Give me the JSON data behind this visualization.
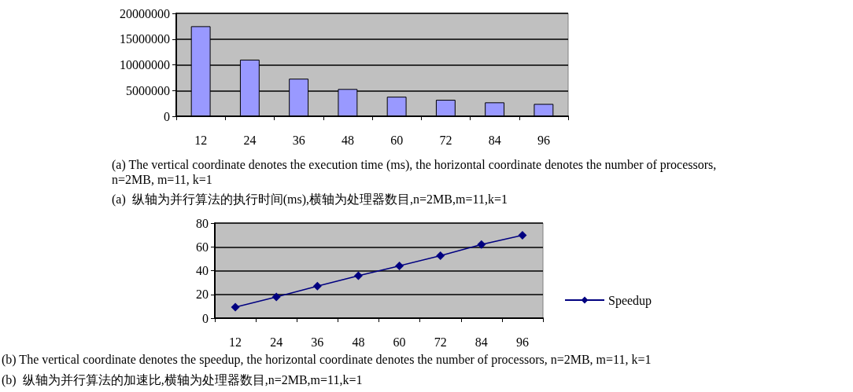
{
  "chart_data": [
    {
      "type": "bar",
      "categories": [
        "12",
        "24",
        "36",
        "48",
        "60",
        "72",
        "84",
        "96"
      ],
      "series": [
        {
          "color": "#9999ff",
          "values": [
            17500000,
            11000000,
            7300000,
            5300000,
            3800000,
            3200000,
            2700000,
            2400000
          ]
        }
      ],
      "ylim": [
        0,
        20000000
      ],
      "yticks": [
        0,
        5000000,
        10000000,
        15000000,
        20000000
      ],
      "grid": "y",
      "annotations": [
        "(a) The vertical coordinate denotes the execution time (ms), the horizontal coordinate denotes the number of processors, n=2MB, m=11, k=1",
        "(a)  纵轴为并行算法的执行时间(ms),横轴为处理器数目,n=2MB,m=11,k=1"
      ]
    },
    {
      "type": "line",
      "categories": [
        "12",
        "24",
        "36",
        "48",
        "60",
        "72",
        "84",
        "96"
      ],
      "series": [
        {
          "name": "Speedup",
          "color": "#000080",
          "values": [
            9.3,
            17.8,
            27,
            35.7,
            44,
            52.6,
            62,
            69.8
          ]
        }
      ],
      "ylim": [
        0,
        80
      ],
      "yticks": [
        0,
        20,
        40,
        60,
        80
      ],
      "grid": "y",
      "legend": "right",
      "marker": "diamond",
      "line_style": "solid",
      "annotations": [
        "(b) The vertical coordinate denotes the speedup, the horizontal coordinate denotes the number of processors, n=2MB, m=11, k=1",
        "(b)  纵轴为并行算法的加速比,横轴为处理器数目,n=2MB,m=11,k=1"
      ]
    }
  ]
}
